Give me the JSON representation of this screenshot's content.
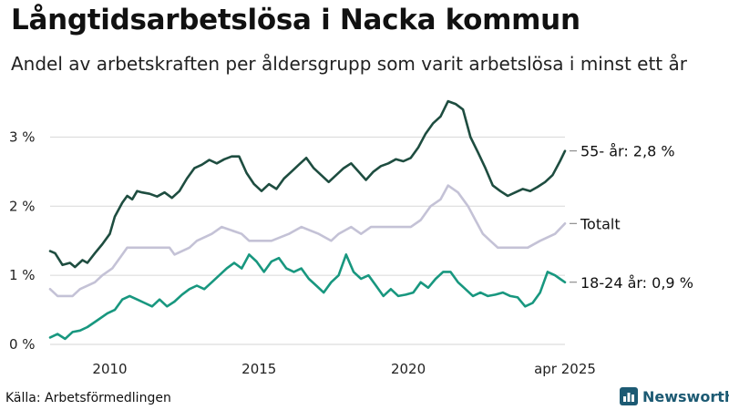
{
  "title": "Långtidsarbetslösa i Nacka kommun",
  "subtitle": "Andel av arbetskraften per åldersgrupp som varit arbetslösa i minst ett år",
  "source": "Källa: Arbetsförmedlingen",
  "brand": "Newsworthy",
  "colors": {
    "series_55": "#1e4d40",
    "series_total": "#c4c2d6",
    "series_18_24": "#18977f",
    "grid": "#dddddd",
    "brand": "#1c5a73"
  },
  "chart_data": {
    "type": "line",
    "title": "Långtidsarbetslösa i Nacka kommun",
    "subtitle": "Andel av arbetskraften per åldersgrupp som varit arbetslösa i minst ett år",
    "y_ticks": [
      "0 %",
      "1 %",
      "2 %",
      "3 %"
    ],
    "y_tick_values": [
      0,
      1,
      2,
      3
    ],
    "x_ticks": [
      "2010",
      "2015",
      "2020",
      "apr 2025"
    ],
    "x_tick_values": [
      2010,
      2015,
      2020,
      2025.25
    ],
    "xlim": [
      "2008-01",
      "2025-04"
    ],
    "ylim": [
      0,
      3.6
    ],
    "grid": true,
    "series": [
      {
        "name": "55- år",
        "end_label": "55- år: 2,8 %",
        "color": "#1e4d40",
        "points": [
          [
            "2008-01",
            1.35
          ],
          [
            "2008-03",
            1.32
          ],
          [
            "2008-06",
            1.15
          ],
          [
            "2008-09",
            1.18
          ],
          [
            "2008-11",
            1.12
          ],
          [
            "2009-02",
            1.22
          ],
          [
            "2009-04",
            1.18
          ],
          [
            "2009-07",
            1.32
          ],
          [
            "2009-10",
            1.45
          ],
          [
            "2010-01",
            1.6
          ],
          [
            "2010-03",
            1.85
          ],
          [
            "2010-06",
            2.05
          ],
          [
            "2010-08",
            2.15
          ],
          [
            "2010-10",
            2.1
          ],
          [
            "2010-12",
            2.22
          ],
          [
            "2011-02",
            2.2
          ],
          [
            "2011-05",
            2.18
          ],
          [
            "2011-08",
            2.14
          ],
          [
            "2011-11",
            2.2
          ],
          [
            "2012-02",
            2.12
          ],
          [
            "2012-05",
            2.22
          ],
          [
            "2012-08",
            2.4
          ],
          [
            "2012-11",
            2.55
          ],
          [
            "2013-02",
            2.6
          ],
          [
            "2013-05",
            2.67
          ],
          [
            "2013-08",
            2.62
          ],
          [
            "2013-11",
            2.68
          ],
          [
            "2014-02",
            2.72
          ],
          [
            "2014-05",
            2.72
          ],
          [
            "2014-08",
            2.48
          ],
          [
            "2014-11",
            2.32
          ],
          [
            "2015-02",
            2.22
          ],
          [
            "2015-05",
            2.32
          ],
          [
            "2015-08",
            2.25
          ],
          [
            "2015-11",
            2.4
          ],
          [
            "2016-02",
            2.5
          ],
          [
            "2016-05",
            2.6
          ],
          [
            "2016-08",
            2.7
          ],
          [
            "2016-11",
            2.55
          ],
          [
            "2017-02",
            2.45
          ],
          [
            "2017-05",
            2.35
          ],
          [
            "2017-08",
            2.45
          ],
          [
            "2017-11",
            2.55
          ],
          [
            "2018-02",
            2.62
          ],
          [
            "2018-05",
            2.5
          ],
          [
            "2018-08",
            2.38
          ],
          [
            "2018-11",
            2.5
          ],
          [
            "2019-02",
            2.58
          ],
          [
            "2019-05",
            2.62
          ],
          [
            "2019-08",
            2.68
          ],
          [
            "2019-11",
            2.65
          ],
          [
            "2020-02",
            2.7
          ],
          [
            "2020-05",
            2.85
          ],
          [
            "2020-08",
            3.05
          ],
          [
            "2020-11",
            3.2
          ],
          [
            "2021-02",
            3.3
          ],
          [
            "2021-05",
            3.52
          ],
          [
            "2021-08",
            3.48
          ],
          [
            "2021-11",
            3.4
          ],
          [
            "2022-02",
            3.0
          ],
          [
            "2022-05",
            2.78
          ],
          [
            "2022-08",
            2.55
          ],
          [
            "2022-11",
            2.3
          ],
          [
            "2023-02",
            2.22
          ],
          [
            "2023-05",
            2.15
          ],
          [
            "2023-08",
            2.2
          ],
          [
            "2023-11",
            2.25
          ],
          [
            "2024-02",
            2.22
          ],
          [
            "2024-05",
            2.28
          ],
          [
            "2024-08",
            2.35
          ],
          [
            "2024-11",
            2.45
          ],
          [
            "2025-02",
            2.65
          ],
          [
            "2025-04",
            2.8
          ]
        ]
      },
      {
        "name": "Totalt",
        "end_label": "Totalt",
        "color": "#c4c2d6",
        "points": [
          [
            "2008-01",
            0.8
          ],
          [
            "2008-04",
            0.7
          ],
          [
            "2008-10",
            0.7
          ],
          [
            "2009-01",
            0.8
          ],
          [
            "2009-07",
            0.9
          ],
          [
            "2009-10",
            1.0
          ],
          [
            "2010-02",
            1.1
          ],
          [
            "2010-06",
            1.3
          ],
          [
            "2010-08",
            1.4
          ],
          [
            "2011-06",
            1.4
          ],
          [
            "2012-01",
            1.4
          ],
          [
            "2012-03",
            1.3
          ],
          [
            "2012-09",
            1.4
          ],
          [
            "2012-12",
            1.5
          ],
          [
            "2013-06",
            1.6
          ],
          [
            "2013-10",
            1.7
          ],
          [
            "2014-06",
            1.6
          ],
          [
            "2014-09",
            1.5
          ],
          [
            "2015-06",
            1.5
          ],
          [
            "2016-01",
            1.6
          ],
          [
            "2016-06",
            1.7
          ],
          [
            "2017-01",
            1.6
          ],
          [
            "2017-06",
            1.5
          ],
          [
            "2017-09",
            1.6
          ],
          [
            "2018-02",
            1.7
          ],
          [
            "2018-06",
            1.6
          ],
          [
            "2018-10",
            1.7
          ],
          [
            "2019-06",
            1.7
          ],
          [
            "2020-02",
            1.7
          ],
          [
            "2020-06",
            1.8
          ],
          [
            "2020-10",
            2.0
          ],
          [
            "2021-02",
            2.1
          ],
          [
            "2021-05",
            2.3
          ],
          [
            "2021-09",
            2.2
          ],
          [
            "2022-01",
            2.0
          ],
          [
            "2022-04",
            1.8
          ],
          [
            "2022-07",
            1.6
          ],
          [
            "2022-10",
            1.5
          ],
          [
            "2023-01",
            1.4
          ],
          [
            "2023-06",
            1.4
          ],
          [
            "2024-01",
            1.4
          ],
          [
            "2024-06",
            1.5
          ],
          [
            "2024-12",
            1.6
          ],
          [
            "2025-04",
            1.75
          ]
        ]
      },
      {
        "name": "18-24 år",
        "end_label": "18-24 år: 0,9 %",
        "color": "#18977f",
        "points": [
          [
            "2008-01",
            0.1
          ],
          [
            "2008-04",
            0.15
          ],
          [
            "2008-07",
            0.08
          ],
          [
            "2008-10",
            0.18
          ],
          [
            "2009-01",
            0.2
          ],
          [
            "2009-04",
            0.25
          ],
          [
            "2009-08",
            0.35
          ],
          [
            "2009-12",
            0.45
          ],
          [
            "2010-03",
            0.5
          ],
          [
            "2010-06",
            0.65
          ],
          [
            "2010-09",
            0.7
          ],
          [
            "2010-12",
            0.65
          ],
          [
            "2011-03",
            0.6
          ],
          [
            "2011-06",
            0.55
          ],
          [
            "2011-09",
            0.65
          ],
          [
            "2011-12",
            0.55
          ],
          [
            "2012-03",
            0.62
          ],
          [
            "2012-06",
            0.72
          ],
          [
            "2012-09",
            0.8
          ],
          [
            "2012-12",
            0.85
          ],
          [
            "2013-03",
            0.8
          ],
          [
            "2013-06",
            0.9
          ],
          [
            "2013-09",
            1.0
          ],
          [
            "2013-12",
            1.1
          ],
          [
            "2014-03",
            1.18
          ],
          [
            "2014-06",
            1.1
          ],
          [
            "2014-09",
            1.3
          ],
          [
            "2014-12",
            1.2
          ],
          [
            "2015-03",
            1.05
          ],
          [
            "2015-06",
            1.2
          ],
          [
            "2015-09",
            1.25
          ],
          [
            "2015-12",
            1.1
          ],
          [
            "2016-03",
            1.05
          ],
          [
            "2016-06",
            1.1
          ],
          [
            "2016-09",
            0.95
          ],
          [
            "2016-12",
            0.85
          ],
          [
            "2017-03",
            0.75
          ],
          [
            "2017-06",
            0.9
          ],
          [
            "2017-09",
            1.0
          ],
          [
            "2017-12",
            1.3
          ],
          [
            "2018-03",
            1.05
          ],
          [
            "2018-06",
            0.95
          ],
          [
            "2018-09",
            1.0
          ],
          [
            "2018-12",
            0.85
          ],
          [
            "2019-03",
            0.7
          ],
          [
            "2019-06",
            0.8
          ],
          [
            "2019-09",
            0.7
          ],
          [
            "2019-12",
            0.72
          ],
          [
            "2020-03",
            0.75
          ],
          [
            "2020-06",
            0.9
          ],
          [
            "2020-09",
            0.82
          ],
          [
            "2020-12",
            0.95
          ],
          [
            "2021-03",
            1.05
          ],
          [
            "2021-06",
            1.05
          ],
          [
            "2021-09",
            0.9
          ],
          [
            "2021-12",
            0.8
          ],
          [
            "2022-03",
            0.7
          ],
          [
            "2022-06",
            0.75
          ],
          [
            "2022-09",
            0.7
          ],
          [
            "2022-12",
            0.72
          ],
          [
            "2023-03",
            0.75
          ],
          [
            "2023-06",
            0.7
          ],
          [
            "2023-09",
            0.68
          ],
          [
            "2023-12",
            0.55
          ],
          [
            "2024-03",
            0.6
          ],
          [
            "2024-06",
            0.75
          ],
          [
            "2024-09",
            1.05
          ],
          [
            "2024-12",
            1.0
          ],
          [
            "2025-02",
            0.95
          ],
          [
            "2025-04",
            0.9
          ]
        ]
      }
    ]
  }
}
